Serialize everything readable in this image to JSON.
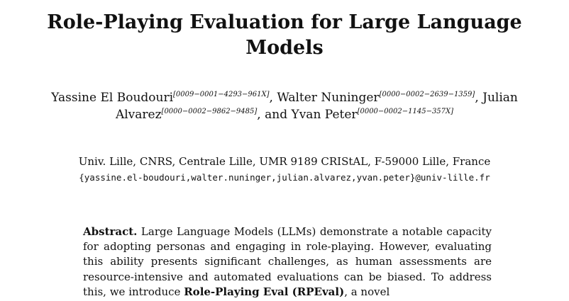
{
  "title": "Role-Playing Evaluation for Large Language Models",
  "authors": [
    {
      "name": "Yassine El Boudouri",
      "orcid": "[0009−0001−4293−961X]",
      "sep": ", "
    },
    {
      "name": "Walter Nuninger",
      "orcid": "[0000−0002−2639−1359]",
      "sep": ", "
    },
    {
      "name": "Julian Alvarez",
      "orcid": "[0000−0002−9862−9485]",
      "sep": ", and "
    },
    {
      "name": "Yvan Peter",
      "orcid": "[0000−0002−1145−357X]",
      "sep": ""
    }
  ],
  "affiliation": "Univ. Lille, CNRS, Centrale Lille, UMR 9189 CRIStAL, F-59000 Lille, France",
  "emails": "{yassine.el-boudouri,walter.nuninger,julian.alvarez,yvan.peter}@univ-lille.fr",
  "abstract": {
    "label": "Abstract.",
    "text_1": "Large Language Models (LLMs) demonstrate a notable capacity for adopting personas and engaging in role-playing. However, evaluating this ability presents significant challenges, as human assessments are resource-intensive and automated evaluations can be biased. To address this, we introduce",
    "bold_term": "Role-Playing Eval (RPEval)",
    "text_2": ", a novel"
  }
}
